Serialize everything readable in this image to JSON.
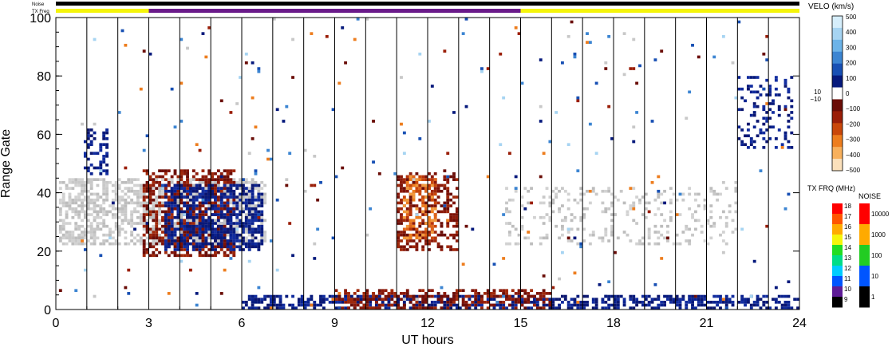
{
  "chart_data": {
    "type": "heatmap",
    "xlabel": "UT hours",
    "ylabel": "Range Gate",
    "xlim": [
      0,
      24
    ],
    "ylim": [
      0,
      100
    ],
    "x_ticks": [
      "0",
      "3",
      "6",
      "9",
      "12",
      "15",
      "18",
      "21",
      "24"
    ],
    "y_ticks": [
      "0",
      "20",
      "40",
      "60",
      "80",
      "100"
    ],
    "scan_boundaries_ut": [
      1.0,
      2.0,
      3.0,
      4.0,
      5.0,
      6.0,
      7.0,
      8.0,
      9.0,
      10.0,
      11.0,
      12.0,
      13.0,
      14.0,
      15.0,
      16.0,
      17.0,
      18.0,
      19.0,
      20.0,
      21.0,
      22.0,
      23.0
    ],
    "top_bars": {
      "noise_label": "Noise",
      "txfreq_label": "TX Freq",
      "txfreq_segments": [
        {
          "start": 0,
          "end": 3.0,
          "color": "#f5f50a"
        },
        {
          "start": 3.0,
          "end": 15.0,
          "color": "#6a1a8a"
        },
        {
          "start": 15.0,
          "end": 24,
          "color": "#f5f50a"
        }
      ]
    },
    "regions": [
      {
        "name": "ground-scatter-a",
        "kind": "gray",
        "x": [
          0.1,
          6.8
        ],
        "y": [
          22,
          45
        ],
        "density": 0.55
      },
      {
        "name": "neg-velocity-a",
        "kind": "neg",
        "x": [
          2.8,
          5.8
        ],
        "y": [
          18,
          48
        ],
        "density": 0.5
      },
      {
        "name": "pos-velocity-a",
        "kind": "pos",
        "x": [
          3.5,
          6.7
        ],
        "y": [
          20,
          43
        ],
        "density": 0.6
      },
      {
        "name": "neg-velocity-b",
        "kind": "neg",
        "x": [
          11.0,
          13.0
        ],
        "y": [
          20,
          47
        ],
        "density": 0.45
      },
      {
        "name": "orange-patch",
        "kind": "orange",
        "x": [
          11.2,
          12.3
        ],
        "y": [
          24,
          46
        ],
        "density": 0.5
      },
      {
        "name": "ground-scatter-b",
        "kind": "gray",
        "x": [
          14.5,
          22.0
        ],
        "y": [
          22,
          42
        ],
        "density": 0.18
      },
      {
        "name": "pos-velocity-b",
        "kind": "pos",
        "x": [
          22.0,
          23.8
        ],
        "y": [
          55,
          80
        ],
        "density": 0.25
      },
      {
        "name": "pos-velocity-c",
        "kind": "pos",
        "x": [
          0.9,
          1.7
        ],
        "y": [
          45,
          62
        ],
        "density": 0.35
      },
      {
        "name": "near-range-pos",
        "kind": "pos",
        "x": [
          6.0,
          24.0
        ],
        "y": [
          0,
          5
        ],
        "density": 0.55
      },
      {
        "name": "near-range-neg",
        "kind": "neg",
        "x": [
          9.0,
          16.0
        ],
        "y": [
          0,
          7
        ],
        "density": 0.45
      },
      {
        "name": "scatter-noise",
        "kind": "mixed",
        "x": [
          0,
          24
        ],
        "y": [
          0,
          100
        ],
        "density": 0.012
      }
    ]
  },
  "velocity_colorbar": {
    "title": "VELO (km/s)",
    "labels": [
      "500",
      "400",
      "300",
      "200",
      "100",
      "0",
      "−100",
      "−200",
      "−300",
      "−400",
      "−500"
    ],
    "side_labels": [
      "10",
      "−10"
    ],
    "colors": [
      "#d6eefb",
      "#a6d4f2",
      "#6cb3e8",
      "#3c85d2",
      "#1850b4",
      "#06197c",
      "#ffffff",
      "#6a0d07",
      "#9a1e08",
      "#c9470a",
      "#ed7d1e",
      "#f8b05c",
      "#fbe0bb"
    ]
  },
  "txfreq_colorbar": {
    "title": "TX FRQ (MHz)",
    "labels": [
      "18",
      "17",
      "16",
      "15",
      "14",
      "13",
      "12",
      "11",
      "10",
      "9"
    ],
    "colors": [
      "#ff0000",
      "#ff5500",
      "#ffaa00",
      "#f5f50a",
      "#22dd22",
      "#00dd88",
      "#00ccff",
      "#0055ff",
      "#5e1c96",
      "#000000"
    ]
  },
  "noise_colorbar": {
    "title": "NOISE",
    "labels": [
      "10000",
      "1000",
      "100",
      "10",
      "1"
    ],
    "colors": [
      "#ff0000",
      "#ffaa00",
      "#22cc22",
      "#0055ff",
      "#000000"
    ]
  }
}
